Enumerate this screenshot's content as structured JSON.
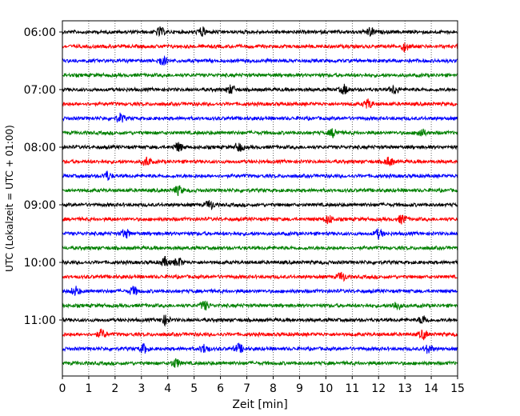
{
  "chart_data": {
    "type": "line",
    "title": "",
    "xlabel": "Zeit  [min]",
    "ylabel": "UTC (Lokalzeit = UTC + 01:00)",
    "xlim": [
      0,
      15
    ],
    "x_ticks": [
      0,
      1,
      2,
      3,
      4,
      5,
      6,
      7,
      8,
      9,
      10,
      11,
      12,
      13,
      14,
      15
    ],
    "x_tick_labels": [
      "0",
      "1",
      "2",
      "3",
      "4",
      "5",
      "6",
      "7",
      "8",
      "9",
      "10",
      "11",
      "12",
      "13",
      "14",
      "15"
    ],
    "y_tick_labels": [
      "06:00",
      "07:00",
      "08:00",
      "09:00",
      "10:00",
      "11:00"
    ],
    "trace_minutes": 15,
    "grid": "vertical dotted",
    "legend": "none",
    "colors": [
      "#000000",
      "#ff0000",
      "#0000ff",
      "#008000"
    ],
    "series": [
      {
        "start": "06:00",
        "events": [
          3.7,
          5.3,
          11.7
        ]
      },
      {
        "start": "06:15",
        "events": [
          13.0
        ]
      },
      {
        "start": "06:30",
        "events": [
          3.8
        ]
      },
      {
        "start": "06:45",
        "events": []
      },
      {
        "start": "07:00",
        "events": [
          6.4,
          10.7,
          12.6
        ]
      },
      {
        "start": "07:15",
        "events": [
          11.6
        ]
      },
      {
        "start": "07:30",
        "events": [
          2.2
        ]
      },
      {
        "start": "07:45",
        "events": [
          10.3,
          13.6
        ]
      },
      {
        "start": "08:00",
        "events": [
          4.4,
          6.7
        ]
      },
      {
        "start": "08:15",
        "events": [
          3.2,
          12.4
        ]
      },
      {
        "start": "08:30",
        "events": [
          1.7
        ]
      },
      {
        "start": "08:45",
        "events": [
          4.4
        ]
      },
      {
        "start": "09:00",
        "events": [
          5.6
        ]
      },
      {
        "start": "09:15",
        "events": [
          10.1,
          12.9
        ]
      },
      {
        "start": "09:30",
        "events": [
          2.4,
          12.0
        ]
      },
      {
        "start": "09:45",
        "events": []
      },
      {
        "start": "10:00",
        "events": [
          3.9,
          4.4
        ]
      },
      {
        "start": "10:15",
        "events": [
          10.6
        ]
      },
      {
        "start": "10:30",
        "events": [
          0.5,
          2.7
        ]
      },
      {
        "start": "10:45",
        "events": [
          5.4,
          12.7
        ]
      },
      {
        "start": "11:00",
        "events": [
          3.9,
          13.7
        ]
      },
      {
        "start": "11:15",
        "events": [
          1.5,
          13.7
        ]
      },
      {
        "start": "11:30",
        "events": [
          3.1,
          5.4,
          6.7,
          13.9
        ]
      },
      {
        "start": "11:45",
        "events": [
          4.3
        ]
      }
    ]
  }
}
